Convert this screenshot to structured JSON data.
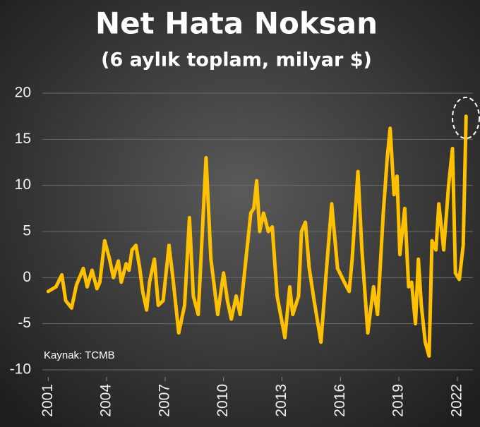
{
  "chart_data": {
    "type": "line",
    "title": "Net Hata Noksan",
    "subtitle": "(6 aylık toplam, milyar $)",
    "annotation": "Kaynak: TCMB",
    "color": "#ffc000",
    "grid": true,
    "xlim": [
      2000.7,
      2022.8
    ],
    "xticks": [
      2001,
      2004,
      2007,
      2010,
      2013,
      2016,
      2019,
      2022
    ],
    "ylim": [
      -10,
      20
    ],
    "yticks": [
      20,
      15,
      10,
      5,
      0,
      -5,
      -10
    ],
    "x": [
      2001.0,
      2001.4,
      2001.7,
      2001.9,
      2002.2,
      2002.45,
      2002.8,
      2003.0,
      2003.25,
      2003.5,
      2003.65,
      2003.9,
      2004.15,
      2004.35,
      2004.6,
      2004.75,
      2005.0,
      2005.15,
      2005.3,
      2005.5,
      2005.7,
      2005.85,
      2006.05,
      2006.2,
      2006.45,
      2006.65,
      2006.9,
      2007.2,
      2007.4,
      2007.7,
      2008.0,
      2008.25,
      2008.45,
      2008.7,
      2009.1,
      2009.35,
      2009.7,
      2010.0,
      2010.2,
      2010.4,
      2010.65,
      2010.85,
      2011.15,
      2011.4,
      2011.55,
      2011.7,
      2011.85,
      2012.05,
      2012.3,
      2012.5,
      2012.75,
      2013.15,
      2013.4,
      2013.55,
      2013.85,
      2014.0,
      2014.2,
      2014.4,
      2014.65,
      2015.0,
      2015.25,
      2015.55,
      2015.85,
      2016.2,
      2016.45,
      2016.6,
      2016.9,
      2017.1,
      2017.4,
      2017.7,
      2017.9,
      2018.2,
      2018.4,
      2018.55,
      2018.75,
      2018.9,
      2019.05,
      2019.3,
      2019.5,
      2019.65,
      2019.85,
      2020.0,
      2020.15,
      2020.35,
      2020.55,
      2020.7,
      2020.9,
      2021.05,
      2021.3,
      2021.55,
      2021.75,
      2021.9,
      2022.1,
      2022.3,
      2022.45
    ],
    "values": [
      -1.5,
      -1,
      0.3,
      -2.5,
      -3.3,
      -0.8,
      1,
      -1,
      0.8,
      -1.2,
      -0.5,
      4,
      2,
      0,
      1.8,
      -0.5,
      1.5,
      0.8,
      3,
      3.5,
      1,
      -1.5,
      -3.5,
      -0.5,
      2,
      -3,
      -2.5,
      3.5,
      0,
      -6,
      -3,
      6.5,
      -2,
      -4,
      13,
      2,
      -4,
      0.5,
      -2.5,
      -4.5,
      -2,
      -4,
      2,
      7,
      7.5,
      10.5,
      5,
      7,
      5,
      5.5,
      -2,
      -6.5,
      -1,
      -4,
      -2,
      5,
      6,
      1,
      -2.5,
      -7,
      0,
      8,
      1,
      -0.5,
      -1.5,
      2,
      11.5,
      3,
      -6,
      -1,
      -4,
      7,
      13,
      16.2,
      9,
      11,
      2.5,
      7.5,
      -1,
      -0.5,
      -5,
      2,
      -3,
      -7,
      -8.5,
      4,
      3,
      8,
      3,
      10,
      14,
      0.5,
      -0.2,
      3.5,
      17.5
    ]
  }
}
